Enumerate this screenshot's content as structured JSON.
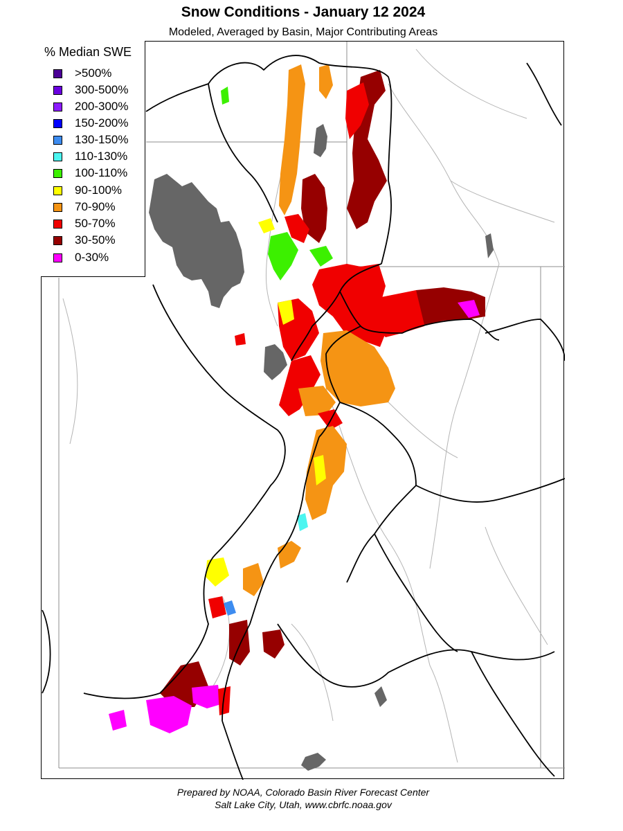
{
  "title": "Snow Conditions - January 12 2024",
  "subtitle": "Modeled, Averaged by Basin, Major Contributing Areas",
  "legend": {
    "title": "% Median SWE",
    "items": [
      {
        "label": ">500%",
        "color": "#4b0096"
      },
      {
        "label": "300-500%",
        "color": "#6a00e0"
      },
      {
        "label": "200-300%",
        "color": "#8c1cff"
      },
      {
        "label": "150-200%",
        "color": "#0000ff"
      },
      {
        "label": "130-150%",
        "color": "#3d8cf0"
      },
      {
        "label": "110-130%",
        "color": "#4cf5f0"
      },
      {
        "label": "100-110%",
        "color": "#3cf000"
      },
      {
        "label": "90-100%",
        "color": "#ffff00"
      },
      {
        "label": "70-90%",
        "color": "#f59414"
      },
      {
        "label": "50-70%",
        "color": "#f00000"
      },
      {
        "label": "30-50%",
        "color": "#960000"
      },
      {
        "label": "0-30%",
        "color": "#ff00ff"
      }
    ]
  },
  "footer": {
    "line1": "Prepared by NOAA, Colorado Basin River Forecast Center",
    "line2": "Salt Lake City, Utah, www.cbrfc.noaa.gov"
  },
  "map": {
    "lake_color": "#666666",
    "river_color": "#b4b4b4",
    "border_color": "#8c8c8c",
    "basin_outline_color": "#000000"
  }
}
